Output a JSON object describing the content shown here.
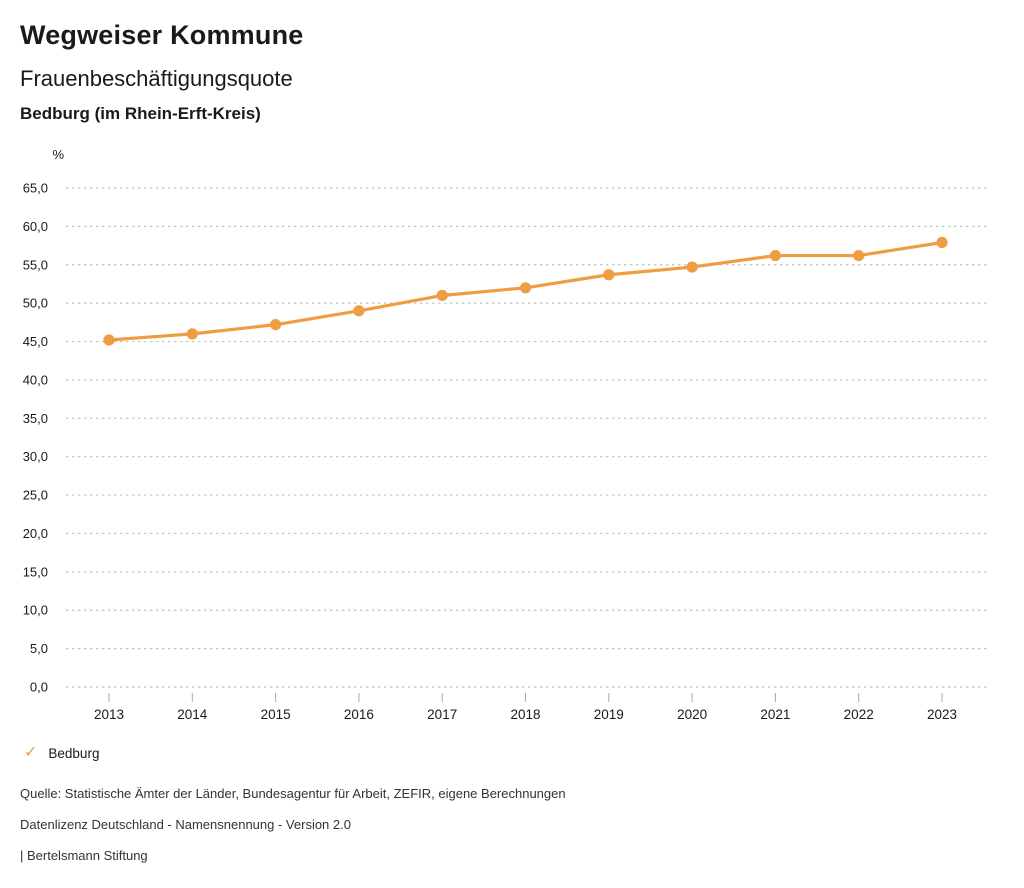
{
  "header": {
    "title": "Wegweiser Kommune",
    "subtitle": "Frauenbeschäftigungsquote",
    "region": "Bedburg (im Rhein-Erft-Kreis)"
  },
  "chart_data": {
    "type": "line",
    "title": "Frauenbeschäftigungsquote",
    "subtitle": "Bedburg (im Rhein-Erft-Kreis)",
    "unit_label": "%",
    "x": [
      2013,
      2014,
      2015,
      2016,
      2017,
      2018,
      2019,
      2020,
      2021,
      2022,
      2023
    ],
    "series": [
      {
        "name": "Bedburg",
        "color": "#EF9D42",
        "values": [
          45.2,
          46.0,
          47.2,
          49.0,
          51.0,
          52.0,
          53.7,
          54.7,
          56.2,
          56.2,
          57.9
        ]
      }
    ],
    "ylim": [
      0,
      65
    ],
    "ytick_step": 5,
    "ytick_labels": [
      "0,0",
      "5,0",
      "10,0",
      "15,0",
      "20,0",
      "25,0",
      "30,0",
      "35,0",
      "40,0",
      "45,0",
      "50,0",
      "55,0",
      "60,0",
      "65,0"
    ],
    "grid": "horizontal-dotted",
    "legend_position": "bottom-left"
  },
  "legend": {
    "icon": "✓",
    "label": "Bedburg"
  },
  "footer": {
    "source": "Quelle: Statistische Ämter der Länder, Bundesagentur für Arbeit, ZEFIR, eigene Berechnungen",
    "license": "Datenlizenz Deutschland - Namensnennung - Version 2.0",
    "publisher": "| Bertelsmann Stiftung"
  },
  "colors": {
    "accent": "#EF9D42",
    "grid": "#c4c4c4",
    "tick": "#a8a8a8",
    "text": "#1a1a1a"
  }
}
